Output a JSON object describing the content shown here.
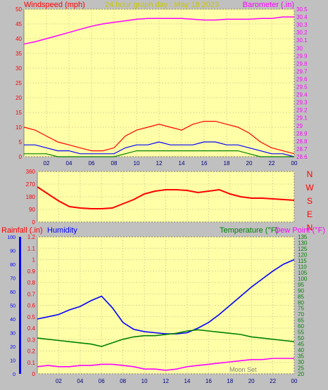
{
  "chart_data": [
    {
      "type": "line",
      "panel": "wind_barometer",
      "title": "24 hour graph day : May 18 2023",
      "ylabel_left": "Windspeed (mph)",
      "ylabel_right": "Barometer (.in)",
      "y_left_range": [
        0,
        50
      ],
      "y_left_ticks": [
        "0",
        "5",
        "10",
        "15",
        "20",
        "25",
        "30",
        "35",
        "40",
        "45",
        "50"
      ],
      "y_right_range": [
        28.6,
        30.5
      ],
      "y_right_ticks": [
        "28.6",
        "28.7",
        "28.8",
        "28.9",
        "29",
        "29.1",
        "29.2",
        "29.3",
        "29.4",
        "29.5",
        "29.6",
        "29.7",
        "29.8",
        "29.9",
        "30",
        "30.1",
        "30.2",
        "30.3",
        "30.4",
        "30.5"
      ],
      "x_ticks": [
        "02",
        "04",
        "06",
        "08",
        "10",
        "12",
        "14",
        "16",
        "18",
        "20",
        "22",
        "00"
      ],
      "x_range_hours": [
        0,
        24
      ],
      "grid": true,
      "series": [
        {
          "name": "Barometer",
          "axis": "right",
          "color": "#ff00ff",
          "x": [
            0,
            1,
            2,
            3,
            4,
            5,
            6,
            7,
            8,
            9,
            10,
            11,
            12,
            13,
            14,
            15,
            16,
            17,
            18,
            19,
            20,
            21,
            22,
            23,
            24
          ],
          "values": [
            30.05,
            30.08,
            30.12,
            30.16,
            30.2,
            30.24,
            30.28,
            30.31,
            30.33,
            30.35,
            30.37,
            30.38,
            30.38,
            30.38,
            30.38,
            30.37,
            30.36,
            30.36,
            30.37,
            30.37,
            30.37,
            30.38,
            30.38,
            30.4,
            30.4
          ]
        },
        {
          "name": "Wind gust",
          "axis": "left",
          "color": "#ff0000",
          "x": [
            0,
            1,
            2,
            3,
            4,
            5,
            6,
            7,
            8,
            9,
            10,
            11,
            12,
            13,
            14,
            15,
            16,
            17,
            18,
            19,
            20,
            21,
            22,
            23,
            24
          ],
          "values": [
            10,
            9,
            7,
            5,
            4,
            3,
            2,
            2,
            3,
            7,
            9,
            10,
            11,
            10,
            9,
            11,
            12,
            12,
            11,
            10,
            8,
            5,
            3,
            2,
            1
          ]
        },
        {
          "name": "Average wind",
          "axis": "left",
          "color": "#0000ff",
          "x": [
            0,
            1,
            2,
            3,
            4,
            5,
            6,
            7,
            8,
            9,
            10,
            11,
            12,
            13,
            14,
            15,
            16,
            17,
            18,
            19,
            20,
            21,
            22,
            23,
            24
          ],
          "values": [
            4,
            4,
            3,
            2,
            2,
            1,
            1,
            1,
            1,
            3,
            4,
            4,
            5,
            4,
            4,
            4,
            5,
            5,
            4,
            4,
            3,
            2,
            1,
            1,
            0
          ]
        },
        {
          "name": "Wind",
          "axis": "left",
          "color": "#008000",
          "x": [
            0,
            1,
            2,
            3,
            4,
            5,
            6,
            7,
            8,
            9,
            10,
            11,
            12,
            13,
            14,
            15,
            16,
            17,
            18,
            19,
            20,
            21,
            22,
            23,
            24
          ],
          "values": [
            1,
            1,
            1,
            0,
            0,
            0,
            0,
            0,
            0,
            1,
            2,
            2,
            2,
            2,
            2,
            2,
            2,
            2,
            2,
            2,
            1,
            0,
            0,
            0,
            0
          ]
        }
      ]
    },
    {
      "type": "line",
      "panel": "wind_direction",
      "y_range": [
        0,
        360
      ],
      "y_ticks": [
        "0",
        "90",
        "180",
        "270",
        "360"
      ],
      "compass_labels": [
        "N",
        "W",
        "S",
        "E",
        "N"
      ],
      "x_range_hours": [
        0,
        24
      ],
      "grid": true,
      "series": [
        {
          "name": "Wind direction",
          "color": "#ff0000",
          "x": [
            0,
            1,
            2,
            3,
            4,
            5,
            6,
            7,
            8,
            9,
            10,
            11,
            12,
            13,
            14,
            15,
            16,
            17,
            18,
            19,
            20,
            21,
            22,
            23,
            24
          ],
          "values": [
            250,
            200,
            150,
            110,
            100,
            95,
            95,
            100,
            130,
            160,
            200,
            220,
            230,
            230,
            225,
            210,
            220,
            230,
            200,
            180,
            170,
            170,
            165,
            160,
            155
          ]
        }
      ]
    },
    {
      "type": "line",
      "panel": "rain_humidity_temperature",
      "ylabel_left_1": "Rainfall (.in)",
      "ylabel_left_2": "Humidity",
      "ylabel_right_1": "Temperature (°F)",
      "ylabel_right_2": "Dew Point (°F)",
      "humidity_ticks": [
        "0",
        "10",
        "20",
        "30",
        "40",
        "50",
        "60",
        "70",
        "80",
        "90",
        "100"
      ],
      "humidity_range": [
        0,
        100
      ],
      "rainfall_ticks": [
        "0",
        "0.1",
        "0.2",
        "0.3",
        "0.4",
        "0.5",
        "0.6",
        "0.7",
        "0.8",
        "0.9",
        "1",
        "1.1",
        "1.2"
      ],
      "rainfall_range": [
        0,
        1.2
      ],
      "temperature_ticks": [
        "20",
        "25",
        "30",
        "35",
        "40",
        "45",
        "50",
        "55",
        "60",
        "65",
        "70",
        "75",
        "80",
        "85",
        "90",
        "95",
        "100",
        "105",
        "110",
        "115",
        "120",
        "125",
        "130",
        "135"
      ],
      "temperature_range": [
        20,
        135
      ],
      "x_ticks": [
        "02",
        "04",
        "06",
        "08",
        "10",
        "12",
        "14",
        "16",
        "18",
        "20",
        "22",
        "00"
      ],
      "x_range_hours": [
        0,
        24
      ],
      "annotation": "Moon Set",
      "grid": true,
      "series": [
        {
          "name": "Humidity",
          "color": "#0000ff",
          "axis": "rainfall",
          "x": [
            0,
            1,
            2,
            3,
            4,
            5,
            6,
            7,
            8,
            9,
            10,
            11,
            12,
            13,
            14,
            15,
            16,
            17,
            18,
            19,
            20,
            21,
            22,
            23,
            24
          ],
          "values": [
            0.48,
            0.5,
            0.52,
            0.56,
            0.59,
            0.64,
            0.68,
            0.58,
            0.45,
            0.39,
            0.37,
            0.36,
            0.35,
            0.35,
            0.36,
            0.4,
            0.45,
            0.52,
            0.6,
            0.68,
            0.76,
            0.83,
            0.9,
            0.96,
            1.0
          ]
        },
        {
          "name": "Temperature",
          "color": "#008000",
          "axis": "temperature",
          "x": [
            0,
            1,
            2,
            3,
            4,
            5,
            6,
            7,
            8,
            9,
            10,
            11,
            12,
            13,
            14,
            15,
            16,
            17,
            18,
            19,
            20,
            21,
            22,
            23,
            24
          ],
          "values": [
            50,
            49,
            48,
            47,
            46,
            45,
            43,
            46,
            49,
            51,
            52,
            52,
            53,
            54,
            56,
            57,
            56,
            55,
            54,
            53,
            51,
            50,
            49,
            48,
            47
          ]
        },
        {
          "name": "Dew Point",
          "color": "#ff00ff",
          "axis": "temperature",
          "x": [
            0,
            1,
            2,
            3,
            4,
            5,
            6,
            7,
            8,
            9,
            10,
            11,
            12,
            13,
            14,
            15,
            16,
            17,
            18,
            19,
            20,
            21,
            22,
            23,
            24
          ],
          "values": [
            26,
            27,
            26,
            26,
            27,
            27,
            28,
            28,
            27,
            26,
            24,
            24,
            23,
            24,
            26,
            27,
            28,
            29,
            30,
            31,
            32,
            32,
            33,
            33,
            33
          ]
        }
      ]
    }
  ]
}
